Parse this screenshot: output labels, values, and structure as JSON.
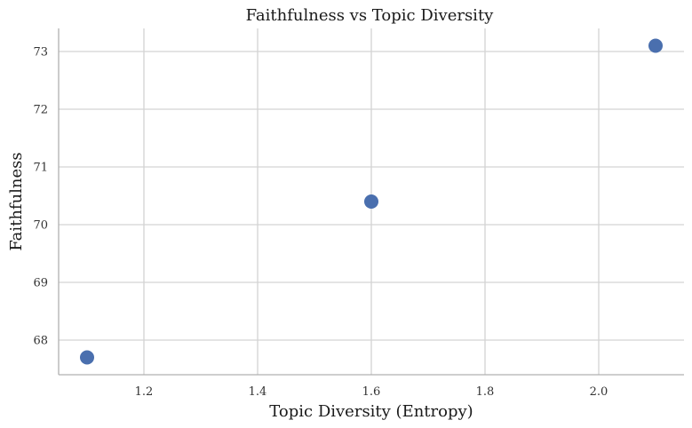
{
  "chart_data": {
    "type": "scatter",
    "title": "Faithfulness vs Topic Diversity",
    "xlabel": "Topic Diversity (Entropy)",
    "ylabel": "Faithfulness",
    "xlim": [
      1.05,
      2.15
    ],
    "ylim": [
      67.4,
      73.4
    ],
    "xticks": [
      1.2,
      1.4,
      1.6,
      1.8,
      2.0
    ],
    "xtick_labels": [
      "1.2",
      "1.4",
      "1.6",
      "1.8",
      "2.0"
    ],
    "yticks": [
      68,
      69,
      70,
      71,
      72,
      73
    ],
    "ytick_labels": [
      "68",
      "69",
      "70",
      "71",
      "72",
      "73"
    ],
    "grid": true,
    "series": [
      {
        "color": "#4a6fae",
        "points": [
          {
            "x": 1.1,
            "y": 67.7
          },
          {
            "x": 1.6,
            "y": 70.4
          },
          {
            "x": 2.1,
            "y": 73.1
          }
        ]
      }
    ]
  }
}
